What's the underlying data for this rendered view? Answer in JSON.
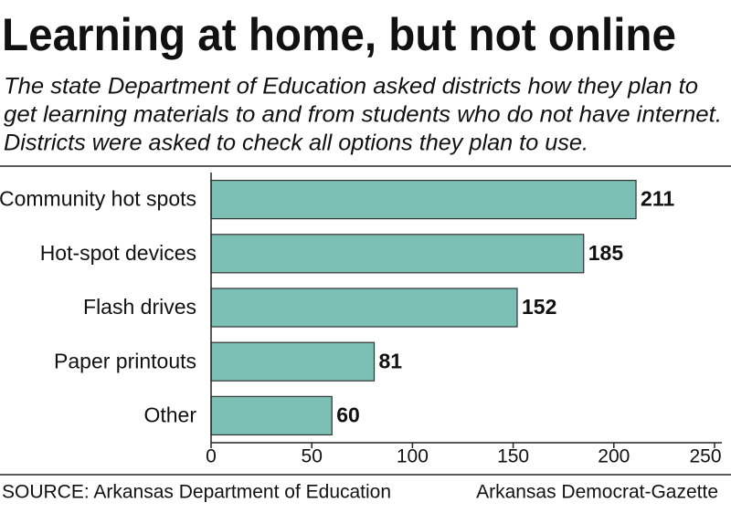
{
  "chart_data": {
    "type": "hbar",
    "title": "Learning at home, but not online",
    "subtitle": [
      "The state Department of Education asked districts how they plan to",
      "get learning materials to and from students who do not have internet.",
      "Districts were asked to check all options they plan to use."
    ],
    "categories": [
      "Community hot spots",
      "Hot-spot devices",
      "Flash drives",
      "Paper printouts",
      "Other"
    ],
    "values": [
      211,
      185,
      152,
      81,
      60
    ],
    "color": "#7bbfb5",
    "xlim": [
      0,
      250
    ],
    "xticks": [
      0,
      50,
      100,
      150,
      200,
      250
    ],
    "source": "SOURCE: Arkansas Department of Education",
    "credit": "Arkansas Democrat-Gazette"
  }
}
